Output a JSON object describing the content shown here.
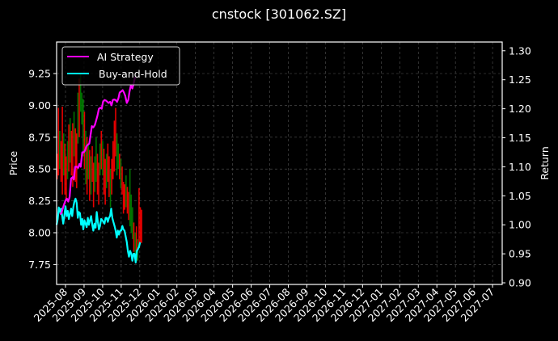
{
  "figure": {
    "background": "#000000",
    "title": "cnstock [301062.SZ]"
  },
  "chart_data": {
    "type": "line",
    "title": "cnstock [301062.SZ]",
    "xlabel": "",
    "ylabel": "Price",
    "ylabel_right": "Return",
    "ylim": [
      7.6,
      9.5
    ],
    "ylim_right": [
      0.9,
      1.31
    ],
    "grid": true,
    "legend_position": "upper left",
    "x_tick_labels": [
      "2025-08",
      "2025-09",
      "2025-10",
      "2025-11",
      "2025-12",
      "2026-01",
      "2026-02",
      "2026-03",
      "2026-04",
      "2026-05",
      "2026-06",
      "2026-07",
      "2026-08",
      "2026-09",
      "2026-10",
      "2026-11",
      "2026-12",
      "2027-01",
      "2027-02",
      "2027-03",
      "2027-04",
      "2027-05",
      "2027-06",
      "2027-07"
    ],
    "y_tick_labels": [
      "7.75",
      "8.00",
      "8.25",
      "8.50",
      "8.75",
      "9.00",
      "9.25"
    ],
    "y_ticks": [
      7.75,
      8.0,
      8.25,
      8.5,
      8.75,
      9.0,
      9.25
    ],
    "y_right_tick_labels": [
      "0.90",
      "0.95",
      "1.00",
      "1.05",
      "1.10",
      "1.15",
      "1.20",
      "1.25",
      "1.30"
    ],
    "y_right_ticks": [
      0.9,
      0.95,
      1.0,
      1.05,
      1.1,
      1.15,
      1.2,
      1.25,
      1.3
    ],
    "x_range_months": [
      -0.5,
      23.5
    ],
    "legend": [
      {
        "label": "AI Strategy",
        "color": "#ff00ff"
      },
      {
        "label": "Buy-and-Hold",
        "color": "#00ffff"
      }
    ],
    "candles": {
      "axis": "left",
      "up_color": "#008000",
      "down_color": "#ff0000",
      "bars": [
        {
          "t": -0.45,
          "high": 8.62,
          "low": 8.42,
          "dir": "down"
        },
        {
          "t": -0.38,
          "high": 8.98,
          "low": 8.45,
          "dir": "down"
        },
        {
          "t": -0.31,
          "high": 8.8,
          "low": 8.5,
          "dir": "up"
        },
        {
          "t": -0.24,
          "high": 8.72,
          "low": 8.4,
          "dir": "down"
        },
        {
          "t": -0.17,
          "high": 8.99,
          "low": 8.3,
          "dir": "down"
        },
        {
          "t": -0.1,
          "high": 8.78,
          "low": 8.45,
          "dir": "up"
        },
        {
          "t": -0.03,
          "high": 8.7,
          "low": 8.3,
          "dir": "down"
        },
        {
          "t": 0.04,
          "high": 8.6,
          "low": 8.25,
          "dir": "down"
        },
        {
          "t": 0.11,
          "high": 8.72,
          "low": 8.42,
          "dir": "up"
        },
        {
          "t": 0.18,
          "high": 8.85,
          "low": 8.48,
          "dir": "down"
        },
        {
          "t": 0.25,
          "high": 8.9,
          "low": 8.55,
          "dir": "up"
        },
        {
          "t": 0.32,
          "high": 8.8,
          "low": 8.45,
          "dir": "down"
        },
        {
          "t": 0.39,
          "high": 8.86,
          "low": 8.36,
          "dir": "down"
        },
        {
          "t": 0.46,
          "high": 8.95,
          "low": 8.6,
          "dir": "up"
        },
        {
          "t": 0.53,
          "high": 8.82,
          "low": 8.4,
          "dir": "down"
        },
        {
          "t": 0.6,
          "high": 8.78,
          "low": 8.35,
          "dir": "down"
        },
        {
          "t": 0.67,
          "high": 9.1,
          "low": 8.7,
          "dir": "up"
        },
        {
          "t": 0.74,
          "high": 9.21,
          "low": 8.75,
          "dir": "down"
        },
        {
          "t": 0.81,
          "high": 9.25,
          "low": 8.95,
          "dir": "up"
        },
        {
          "t": 0.88,
          "high": 9.1,
          "low": 8.85,
          "dir": "up"
        },
        {
          "t": 0.95,
          "high": 9.05,
          "low": 8.6,
          "dir": "up"
        },
        {
          "t": 1.02,
          "high": 8.95,
          "low": 8.5,
          "dir": "down"
        },
        {
          "t": 1.09,
          "high": 8.8,
          "low": 8.38,
          "dir": "up"
        },
        {
          "t": 1.16,
          "high": 8.75,
          "low": 8.3,
          "dir": "down"
        },
        {
          "t": 1.23,
          "high": 8.7,
          "low": 8.42,
          "dir": "up"
        },
        {
          "t": 1.3,
          "high": 8.65,
          "low": 8.25,
          "dir": "down"
        },
        {
          "t": 1.37,
          "high": 8.6,
          "low": 8.3,
          "dir": "up"
        },
        {
          "t": 1.44,
          "high": 8.68,
          "low": 8.4,
          "dir": "down"
        },
        {
          "t": 1.51,
          "high": 8.55,
          "low": 8.2,
          "dir": "down"
        },
        {
          "t": 1.58,
          "high": 8.6,
          "low": 8.32,
          "dir": "up"
        },
        {
          "t": 1.65,
          "high": 8.75,
          "low": 8.4,
          "dir": "up"
        },
        {
          "t": 1.72,
          "high": 8.62,
          "low": 8.3,
          "dir": "down"
        },
        {
          "t": 1.79,
          "high": 8.55,
          "low": 8.22,
          "dir": "down"
        },
        {
          "t": 1.86,
          "high": 8.7,
          "low": 8.45,
          "dir": "up"
        },
        {
          "t": 1.93,
          "high": 8.8,
          "low": 8.5,
          "dir": "down"
        },
        {
          "t": 2.0,
          "high": 8.72,
          "low": 8.45,
          "dir": "up"
        },
        {
          "t": 2.07,
          "high": 8.66,
          "low": 8.3,
          "dir": "down"
        },
        {
          "t": 2.14,
          "high": 8.58,
          "low": 8.22,
          "dir": "down"
        },
        {
          "t": 2.21,
          "high": 8.62,
          "low": 8.35,
          "dir": "up"
        },
        {
          "t": 2.28,
          "high": 8.7,
          "low": 8.4,
          "dir": "down"
        },
        {
          "t": 2.35,
          "high": 8.6,
          "low": 8.28,
          "dir": "down"
        },
        {
          "t": 2.42,
          "high": 8.5,
          "low": 8.2,
          "dir": "up"
        },
        {
          "t": 2.49,
          "high": 8.58,
          "low": 8.3,
          "dir": "down"
        },
        {
          "t": 2.56,
          "high": 8.72,
          "low": 8.42,
          "dir": "down"
        },
        {
          "t": 2.63,
          "high": 8.88,
          "low": 8.48,
          "dir": "down"
        },
        {
          "t": 2.7,
          "high": 8.98,
          "low": 8.6,
          "dir": "down"
        },
        {
          "t": 2.77,
          "high": 8.78,
          "low": 8.45,
          "dir": "up"
        },
        {
          "t": 2.84,
          "high": 8.7,
          "low": 8.5,
          "dir": "up"
        },
        {
          "t": 2.91,
          "high": 8.62,
          "low": 8.42,
          "dir": "down"
        },
        {
          "t": 2.98,
          "high": 8.58,
          "low": 8.35,
          "dir": "up"
        },
        {
          "t": 3.05,
          "high": 8.52,
          "low": 8.3,
          "dir": "down"
        },
        {
          "t": 3.12,
          "high": 8.4,
          "low": 8.15,
          "dir": "down"
        },
        {
          "t": 3.19,
          "high": 8.38,
          "low": 8.18,
          "dir": "down"
        },
        {
          "t": 3.26,
          "high": 8.45,
          "low": 8.2,
          "dir": "up"
        },
        {
          "t": 3.33,
          "high": 8.36,
          "low": 8.15,
          "dir": "down"
        },
        {
          "t": 3.4,
          "high": 8.32,
          "low": 8.1,
          "dir": "down"
        },
        {
          "t": 3.47,
          "high": 8.5,
          "low": 8.05,
          "dir": "up"
        },
        {
          "t": 3.54,
          "high": 8.3,
          "low": 8.0,
          "dir": "up"
        },
        {
          "t": 3.61,
          "high": 8.2,
          "low": 7.95,
          "dir": "up"
        },
        {
          "t": 3.68,
          "high": 8.08,
          "low": 7.85,
          "dir": "down"
        },
        {
          "t": 3.75,
          "high": 8.0,
          "low": 7.8,
          "dir": "up"
        },
        {
          "t": 3.82,
          "high": 8.05,
          "low": 7.78,
          "dir": "down"
        },
        {
          "t": 3.89,
          "high": 7.95,
          "low": 7.78,
          "dir": "up"
        },
        {
          "t": 3.96,
          "high": 8.35,
          "low": 7.9,
          "dir": "down"
        },
        {
          "t": 4.03,
          "high": 8.2,
          "low": 7.92,
          "dir": "down"
        },
        {
          "t": 4.1,
          "high": 8.18,
          "low": 7.92,
          "dir": "down"
        }
      ]
    },
    "series": [
      {
        "name": "AI Strategy",
        "axis": "right",
        "color": "#ff00ff",
        "t": [
          -0.3,
          -0.22,
          -0.15,
          -0.08,
          0.0,
          0.08,
          0.15,
          0.22,
          0.3,
          0.38,
          0.45,
          0.52,
          0.6,
          0.68,
          0.75,
          0.82,
          0.9,
          0.98,
          1.05,
          1.12,
          1.2,
          1.28,
          1.35,
          1.42,
          1.5,
          1.58,
          1.65,
          1.72,
          1.8,
          1.88,
          1.95,
          2.02,
          2.1,
          2.18,
          2.25,
          2.32,
          2.4,
          2.48,
          2.55,
          2.62,
          2.7,
          2.78,
          2.85,
          2.92,
          3.0,
          3.08,
          3.15,
          3.22,
          3.3,
          3.38,
          3.45,
          3.52,
          3.6,
          3.68,
          3.75
        ],
        "values": [
          1.018,
          1.02,
          1.028,
          1.035,
          1.042,
          1.045,
          1.04,
          1.048,
          1.08,
          1.082,
          1.078,
          1.1,
          1.1,
          1.098,
          1.105,
          1.1,
          1.125,
          1.125,
          1.128,
          1.135,
          1.138,
          1.14,
          1.155,
          1.17,
          1.168,
          1.172,
          1.18,
          1.188,
          1.2,
          1.202,
          1.2,
          1.212,
          1.215,
          1.214,
          1.212,
          1.21,
          1.212,
          1.206,
          1.215,
          1.216,
          1.215,
          1.212,
          1.218,
          1.228,
          1.23,
          1.232,
          1.228,
          1.222,
          1.21,
          1.215,
          1.23,
          1.24,
          1.235,
          1.245,
          1.255
        ]
      },
      {
        "name": "Buy-and-Hold",
        "axis": "right",
        "color": "#00ffff",
        "t": [
          -0.48,
          -0.42,
          -0.36,
          -0.3,
          -0.24,
          -0.18,
          -0.12,
          -0.06,
          0.0,
          0.06,
          0.12,
          0.18,
          0.24,
          0.3,
          0.36,
          0.42,
          0.48,
          0.54,
          0.6,
          0.66,
          0.72,
          0.78,
          0.84,
          0.9,
          0.96,
          1.02,
          1.08,
          1.14,
          1.2,
          1.26,
          1.32,
          1.38,
          1.44,
          1.5,
          1.56,
          1.62,
          1.68,
          1.74,
          1.8,
          1.86,
          1.92,
          1.98,
          2.04,
          2.1,
          2.16,
          2.22,
          2.28,
          2.34,
          2.4,
          2.46,
          2.52,
          2.58,
          2.64,
          2.7,
          2.76,
          2.82,
          2.88,
          2.94,
          3.0,
          3.06,
          3.12,
          3.18,
          3.24,
          3.3,
          3.36,
          3.42,
          3.48,
          3.54,
          3.6,
          3.66,
          3.72,
          3.78,
          3.84,
          3.9,
          3.96,
          4.02
        ],
        "values": [
          1.0,
          1.01,
          1.03,
          1.022,
          1.028,
          1.015,
          1.002,
          1.016,
          1.032,
          1.015,
          1.024,
          1.01,
          1.018,
          1.028,
          1.015,
          1.03,
          1.04,
          1.045,
          1.038,
          1.012,
          1.022,
          1.02,
          1.0,
          1.01,
          0.992,
          1.008,
          1.002,
          0.996,
          1.012,
          1.0,
          1.008,
          1.015,
          1.0,
          0.99,
          1.002,
          0.995,
          1.022,
          1.005,
          0.992,
          0.998,
          1.01,
          1.008,
          1.005,
          1.002,
          1.012,
          1.012,
          1.005,
          1.012,
          1.015,
          1.028,
          1.012,
          1.005,
          0.998,
          0.99,
          0.978,
          0.99,
          0.983,
          0.99,
          0.99,
          0.998,
          0.992,
          0.99,
          0.98,
          0.97,
          0.955,
          0.945,
          0.955,
          0.95,
          0.938,
          0.95,
          0.95,
          0.935,
          0.955,
          0.958,
          0.962,
          0.97
        ]
      }
    ]
  }
}
